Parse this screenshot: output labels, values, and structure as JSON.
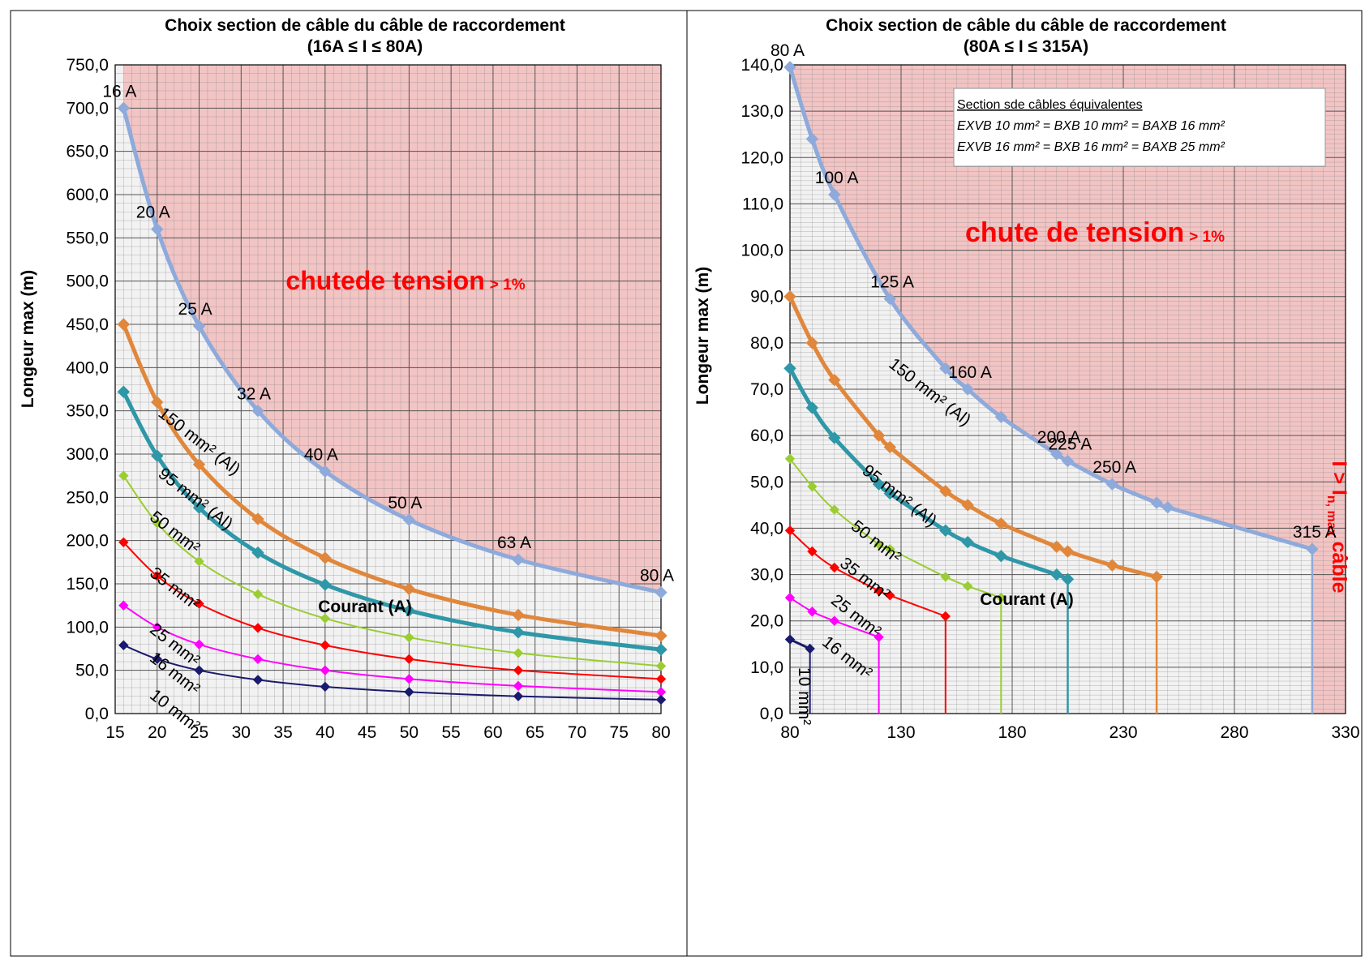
{
  "colors": {
    "zone": "#f2c4c4",
    "plot_bg": "#f2f2f2",
    "grid": "#888888",
    "warning_text": "#ff0000"
  },
  "chart_data": [
    {
      "type": "line",
      "title": "Choix section de câble du câble de raccordement",
      "subtitle": "(16A ≤ I ≤ 80A)",
      "xlabel": "Courant (A)",
      "ylabel": "Longeur max (m)",
      "xlim": [
        15,
        80
      ],
      "ylim": [
        0,
        750
      ],
      "x_ticks": [
        15,
        20,
        25,
        30,
        35,
        40,
        45,
        50,
        55,
        60,
        65,
        70,
        75,
        80
      ],
      "y_ticks": [
        "0,0",
        "50,0",
        "100,0",
        "150,0",
        "200,0",
        "250,0",
        "300,0",
        "350,0",
        "400,0",
        "450,0",
        "500,0",
        "550,0",
        "600,0",
        "650,0",
        "700,0",
        "750,0"
      ],
      "grid": true,
      "zone_label": "chutede tension",
      "zone_label_suffix": "> 1%",
      "series": [
        {
          "name": "16 A",
          "color": "#8eaadb",
          "width": 5,
          "x": [
            16,
            20,
            25,
            32,
            40,
            50,
            63,
            80
          ],
          "y": [
            700,
            560,
            448,
            350,
            280,
            224,
            178,
            140
          ]
        },
        {
          "name": "150 mm² (Al)",
          "color": "#e0873c",
          "width": 5,
          "x": [
            16,
            20,
            25,
            32,
            40,
            50,
            63,
            80
          ],
          "y": [
            450,
            360,
            288,
            225,
            180,
            144,
            114,
            90
          ]
        },
        {
          "name": "95 mm² (Al)",
          "color": "#2e97a8",
          "width": 5,
          "x": [
            16,
            20,
            25,
            32,
            40,
            50,
            63,
            80
          ],
          "y": [
            372,
            298,
            238,
            186,
            149,
            119,
            94,
            74
          ]
        },
        {
          "name": "50 mm²",
          "color": "#9acd32",
          "width": 2,
          "x": [
            16,
            20,
            25,
            32,
            40,
            50,
            63,
            80
          ],
          "y": [
            275,
            220,
            176,
            138,
            110,
            88,
            70,
            55
          ]
        },
        {
          "name": "35 mm²",
          "color": "#ff0000",
          "width": 2,
          "x": [
            16,
            20,
            25,
            32,
            40,
            50,
            63,
            80
          ],
          "y": [
            198,
            159,
            127,
            99,
            79,
            63,
            50,
            40
          ]
        },
        {
          "name": "25 mm²",
          "color": "#ff00ff",
          "width": 2,
          "x": [
            16,
            20,
            25,
            32,
            40,
            50,
            63,
            80
          ],
          "y": [
            125,
            100,
            80,
            63,
            50,
            40,
            32,
            25
          ]
        },
        {
          "name": "10 mm²",
          "color": "#1a1a6e",
          "width": 2,
          "x": [
            16,
            20,
            25,
            32,
            40,
            50,
            63,
            80
          ],
          "y": [
            79,
            63,
            50,
            39,
            31,
            25,
            20,
            16
          ]
        }
      ],
      "point_labels": [
        {
          "text": "16 A",
          "x": 16,
          "y": 700
        },
        {
          "text": "20 A",
          "x": 20,
          "y": 560
        },
        {
          "text": "25 A",
          "x": 25,
          "y": 448
        },
        {
          "text": "32 A",
          "x": 32,
          "y": 350
        },
        {
          "text": "40 A",
          "x": 40,
          "y": 280
        },
        {
          "text": "50 A",
          "x": 50,
          "y": 224
        },
        {
          "text": "63 A",
          "x": 63,
          "y": 178
        },
        {
          "text": "80 A",
          "x": 80,
          "y": 140
        }
      ],
      "curve_labels": [
        {
          "text": "150 mm² (Al)",
          "x": 20,
          "y": 345
        },
        {
          "text": "95 mm² (Al)",
          "x": 20,
          "y": 275
        },
        {
          "text": "50 mm²",
          "x": 19,
          "y": 225
        },
        {
          "text": "35 mm²",
          "x": 19,
          "y": 160
        },
        {
          "text": "25 mm²",
          "x": 19,
          "y": 95
        },
        {
          "text": "16 mm²",
          "x": 19,
          "y": 62
        },
        {
          "text": "10 mm²",
          "x": 19,
          "y": 19
        }
      ]
    },
    {
      "type": "line",
      "title": "Choix section de câble du câble de raccordement",
      "subtitle": "(80A ≤ I ≤ 315A)",
      "xlabel": "Courant (A)",
      "ylabel": "Longeur max (m)",
      "xlim": [
        80,
        330
      ],
      "ylim": [
        0,
        140
      ],
      "x_ticks": [
        80,
        130,
        180,
        230,
        280,
        330
      ],
      "y_ticks": [
        "0,0",
        "10,0",
        "20,0",
        "30,0",
        "40,0",
        "50,0",
        "60,0",
        "70,0",
        "80,0",
        "90,0",
        "100,0",
        "110,0",
        "120,0",
        "130,0",
        "140,0"
      ],
      "grid": true,
      "zone_label": "chute de tension",
      "zone_label_suffix": "> 1%",
      "side_label": "I > I",
      "side_label_sub": "n, max",
      "side_label_end": "câble",
      "legend_box": {
        "title": "Section sde câbles équivalentes",
        "lines": [
          "EXVB 10 mm² = BXB 10 mm² = BAXB 16 mm²",
          "EXVB 16 mm² = BXB 16 mm² = BAXB 25 mm²"
        ]
      },
      "series": [
        {
          "name": "80 A",
          "color": "#8eaadb",
          "width": 5,
          "limit": 315,
          "x": [
            80,
            90,
            100,
            125,
            150,
            160,
            175,
            200,
            205,
            225,
            245,
            250,
            315
          ],
          "y": [
            139.5,
            124,
            112,
            89.5,
            74.5,
            70,
            64,
            56,
            54.5,
            49.5,
            45.5,
            44.5,
            35.5
          ]
        },
        {
          "name": "150 mm² (Al)",
          "color": "#e0873c",
          "width": 5,
          "limit": 245,
          "x": [
            80,
            90,
            100,
            120,
            125,
            150,
            160,
            175,
            200,
            205,
            225,
            245
          ],
          "y": [
            90,
            80,
            72,
            60,
            57.5,
            48,
            45,
            41,
            36,
            35,
            32,
            29.5
          ]
        },
        {
          "name": "95 mm² (Al)",
          "color": "#2e97a8",
          "width": 5,
          "limit": 205,
          "x": [
            80,
            90,
            100,
            120,
            125,
            150,
            160,
            175,
            200,
            205
          ],
          "y": [
            74.5,
            66,
            59.5,
            49.5,
            47.5,
            39.5,
            37,
            34,
            30,
            29
          ]
        },
        {
          "name": "50 mm²",
          "color": "#9acd32",
          "width": 2,
          "limit": 175,
          "x": [
            80,
            90,
            100,
            120,
            125,
            150,
            160,
            175
          ],
          "y": [
            55,
            49,
            44,
            36.5,
            35.5,
            29.5,
            27.5,
            25
          ]
        },
        {
          "name": "35 mm²",
          "color": "#ff0000",
          "width": 2,
          "limit": 150,
          "x": [
            80,
            90,
            100,
            120,
            125,
            150
          ],
          "y": [
            39.5,
            35,
            31.5,
            26.5,
            25.5,
            21
          ]
        },
        {
          "name": "25 mm²",
          "color": "#ff00ff",
          "width": 2,
          "limit": 120,
          "x": [
            80,
            90,
            100,
            120
          ],
          "y": [
            25,
            22,
            20,
            16.5
          ]
        },
        {
          "name": "10 mm²",
          "color": "#1a1a6e",
          "width": 3,
          "limit": 89,
          "x": [
            80,
            89
          ],
          "y": [
            16,
            14
          ]
        }
      ],
      "point_labels": [
        {
          "text": "80 A",
          "x": 80,
          "y": 139.5
        },
        {
          "text": "100 A",
          "x": 100,
          "y": 112
        },
        {
          "text": "125 A",
          "x": 125,
          "y": 89.5
        },
        {
          "text": "160 A",
          "x": 160,
          "y": 70
        },
        {
          "text": "200 A",
          "x": 200,
          "y": 56
        },
        {
          "text": "225 A",
          "x": 205,
          "y": 54.5
        },
        {
          "text": "250 A",
          "x": 225,
          "y": 49.5
        },
        {
          "text": "315 A",
          "x": 315,
          "y": 35.5
        }
      ],
      "curve_labels": [
        {
          "text": "150 mm² (Al)",
          "x": 124,
          "y": 75
        },
        {
          "text": "95 mm² (Al)",
          "x": 112,
          "y": 52
        },
        {
          "text": "50 mm²",
          "x": 107,
          "y": 40
        },
        {
          "text": "35 mm²",
          "x": 102,
          "y": 32
        },
        {
          "text": "25 mm²",
          "x": 98,
          "y": 24
        },
        {
          "text": "16 mm²",
          "x": 94,
          "y": 15
        },
        {
          "text": "10 mm²",
          "x": 84,
          "y": 10
        }
      ]
    }
  ]
}
